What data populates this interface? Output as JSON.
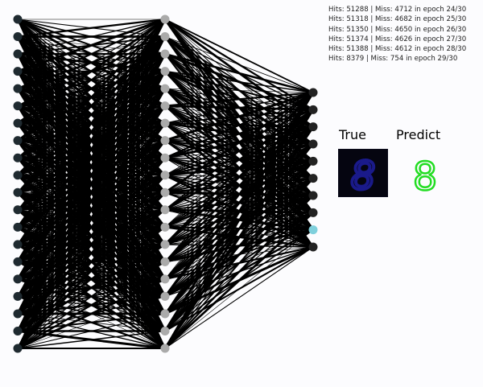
{
  "training_log": [
    "Hits: 51288 | Miss: 4712 in epoch 24/30",
    "Hits: 51318 | Miss: 4682 in epoch 25/30",
    "Hits: 51350 | Miss: 4650 in epoch 26/30",
    "Hits: 51374 | Miss: 4626 in epoch 27/30",
    "Hits: 51388 | Miss: 4612 in epoch 28/30",
    "Hits: 8379 | Miss: 754 in epoch 29/30"
  ],
  "true_panel": {
    "label": "True",
    "digit": "8"
  },
  "predict_panel": {
    "label": "Predict",
    "digit": "8"
  },
  "network": {
    "layer_sizes": [
      20,
      20,
      10
    ],
    "layer_colors": [
      "#1f2a30",
      "#aaaaaa",
      "#222222"
    ],
    "edge_color": "#000000",
    "active_output_index": 8,
    "active_output_color": "#7fd0dc"
  },
  "colors": {
    "predict_digit": "#22dd22",
    "true_digit": "#1a1a8a",
    "true_background": "#050510"
  }
}
